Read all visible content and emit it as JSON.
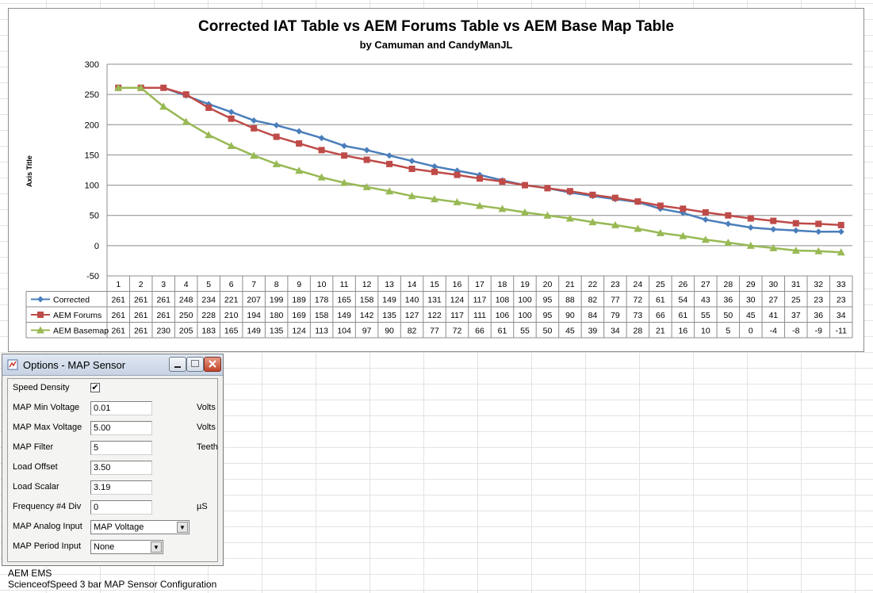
{
  "chart_data": {
    "type": "line",
    "title": "Corrected IAT Table vs AEM Forums Table vs AEM Base Map Table",
    "subtitle": "by Camuman and CandyManJL",
    "ylabel": "Axis Title",
    "ylim": [
      -50,
      300
    ],
    "yticks": [
      300,
      250,
      200,
      150,
      100,
      50,
      0,
      -50
    ],
    "categories": [
      "1",
      "2",
      "3",
      "4",
      "5",
      "6",
      "7",
      "8",
      "9",
      "10",
      "11",
      "12",
      "13",
      "14",
      "15",
      "16",
      "17",
      "18",
      "19",
      "20",
      "21",
      "22",
      "23",
      "24",
      "25",
      "26",
      "27",
      "28",
      "29",
      "30",
      "31",
      "32",
      "33"
    ],
    "grid": true,
    "legend": "data-table",
    "series": [
      {
        "name": "Corrected",
        "color": "#4a7ebb",
        "marker": "diamond",
        "values": [
          261,
          261,
          261,
          248,
          234,
          221,
          207,
          199,
          189,
          178,
          165,
          158,
          149,
          140,
          131,
          124,
          117,
          108,
          100,
          95,
          88,
          82,
          77,
          72,
          61,
          54,
          43,
          36,
          30,
          27,
          25,
          23,
          23
        ]
      },
      {
        "name": "AEM Forums",
        "color": "#be4b48",
        "marker": "square",
        "values": [
          261,
          261,
          261,
          250,
          228,
          210,
          194,
          180,
          169,
          158,
          149,
          142,
          135,
          127,
          122,
          117,
          111,
          106,
          100,
          95,
          90,
          84,
          79,
          73,
          66,
          61,
          55,
          50,
          45,
          41,
          37,
          36,
          34
        ]
      },
      {
        "name": "AEM Basemap",
        "color": "#98b954",
        "marker": "triangle",
        "values": [
          261,
          261,
          230,
          205,
          183,
          165,
          149,
          135,
          124,
          113,
          104,
          97,
          90,
          82,
          77,
          72,
          66,
          61,
          55,
          50,
          45,
          39,
          34,
          28,
          21,
          16,
          10,
          5,
          0,
          -4,
          -8,
          -9,
          -11
        ]
      }
    ]
  },
  "dialog": {
    "title": "Options - MAP Sensor",
    "rows": [
      {
        "label": "Speed Density",
        "type": "checkbox",
        "checked": "✔"
      },
      {
        "label": "MAP Min Voltage",
        "type": "text",
        "value": "0.01",
        "unit": "Volts"
      },
      {
        "label": "MAP Max Voltage",
        "type": "text",
        "value": "5.00",
        "unit": "Volts"
      },
      {
        "label": "MAP Filter",
        "type": "text",
        "value": "5",
        "unit": "Teeth"
      },
      {
        "label": "Load Offset",
        "type": "text",
        "value": "3.50"
      },
      {
        "label": "Load Scalar",
        "type": "text",
        "value": "3.19"
      },
      {
        "label": "Frequency #4 Div",
        "type": "text",
        "value": "0",
        "unit": "µS"
      },
      {
        "label": "MAP Analog Input",
        "type": "select",
        "value": "MAP Voltage"
      },
      {
        "label": "MAP Period Input",
        "type": "select",
        "value": "None"
      }
    ]
  },
  "caption": {
    "line1": "AEM EMS",
    "line2": "ScienceofSpeed 3 bar MAP Sensor Configuration"
  }
}
